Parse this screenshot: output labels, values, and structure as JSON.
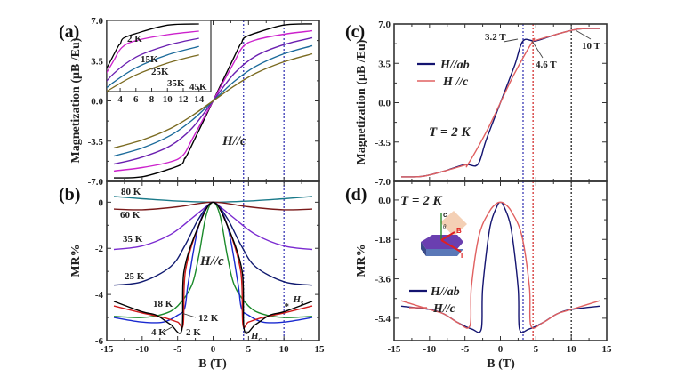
{
  "chart_data": [
    {
      "id": "a",
      "panel_label": "(a)",
      "type": "line",
      "title": "",
      "xlabel": "",
      "ylabel": "Magnetization (μB /Eu)",
      "xlim": [
        -15,
        15
      ],
      "ylim": [
        -7.0,
        7.0
      ],
      "yticks": [
        "7.0",
        "3.5",
        "0.0",
        "-3.5",
        "-7.0"
      ],
      "yticks_values": [
        7.0,
        3.5,
        0.0,
        -3.5,
        -7.0
      ],
      "annotation": "H//c",
      "vlines": [
        {
          "x": 4.3,
          "color": "#2a2ab0"
        },
        {
          "x": 10,
          "color": "#2a2ab0"
        }
      ],
      "series": [
        {
          "name": "2 K",
          "color": "#000000",
          "x": [
            -14,
            -10,
            -6,
            -4.4,
            -4.0,
            -3.5,
            0,
            3.5,
            4.0,
            4.4,
            6,
            10,
            14
          ],
          "y": [
            -6.7,
            -6.6,
            -5.9,
            -5.5,
            -5.0,
            -4.5,
            0,
            4.5,
            5.0,
            5.5,
            5.9,
            6.6,
            6.7
          ]
        },
        {
          "name": "15K",
          "color": "#cc22cc",
          "x": [
            -14,
            -10,
            -6,
            -4.2,
            -3,
            0,
            3,
            4.2,
            6,
            10,
            14
          ],
          "y": [
            -6.1,
            -5.8,
            -5.3,
            -4.7,
            -3.4,
            0,
            3.4,
            4.7,
            5.3,
            5.8,
            6.1
          ]
        },
        {
          "name": "25K",
          "color": "#6a1fb0",
          "x": [
            -14,
            -10,
            -6,
            -3,
            0,
            3,
            6,
            10,
            14
          ],
          "y": [
            -5.5,
            -4.9,
            -3.9,
            -2.4,
            0,
            2.4,
            3.9,
            4.9,
            5.5
          ]
        },
        {
          "name": "35K",
          "color": "#1a6a9a",
          "x": [
            -14,
            -10,
            -6,
            -3,
            0,
            3,
            6,
            10,
            14
          ],
          "y": [
            -4.8,
            -4.1,
            -3.0,
            -1.7,
            0,
            1.7,
            3.0,
            4.1,
            4.8
          ]
        },
        {
          "name": "45K",
          "color": "#7a6a20",
          "x": [
            -14,
            -10,
            -6,
            -3,
            0,
            3,
            6,
            10,
            14
          ],
          "y": [
            -4.1,
            -3.4,
            -2.4,
            -1.3,
            0,
            1.3,
            2.4,
            3.4,
            4.1
          ]
        }
      ],
      "inset": {
        "xticks": [
          "4",
          "6",
          "8",
          "10",
          "12",
          "14"
        ],
        "xticks_values": [
          4,
          6,
          8,
          10,
          12,
          14
        ],
        "xlim": [
          2.3,
          15.5
        ],
        "ylim": [
          1.0,
          7.0
        ],
        "labels": [
          "2 K",
          "15K",
          "25K",
          "35K",
          "45K"
        ]
      }
    },
    {
      "id": "b",
      "panel_label": "(b)",
      "type": "line",
      "xlabel": "B (T)",
      "ylabel": "MR%",
      "xlim": [
        -15,
        15
      ],
      "ylim": [
        -6,
        0.9
      ],
      "xticks": [
        "-15",
        "-10",
        "-5",
        "0",
        "5",
        "10",
        "15"
      ],
      "xticks_values": [
        -15,
        -10,
        -5,
        0,
        5,
        10,
        15
      ],
      "yticks": [
        "0",
        "-2",
        "-4",
        "-6"
      ],
      "yticks_values": [
        0,
        -2,
        -4,
        -6
      ],
      "annotation": "H//c",
      "markers": [
        {
          "label": "Hc",
          "x": 4.7
        },
        {
          "label": "Hs",
          "x": 10.3
        }
      ],
      "vlines": [
        {
          "x": 4.3,
          "color": "#2a2ab0"
        },
        {
          "x": 10,
          "color": "#2a2ab0"
        }
      ],
      "series": [
        {
          "name": "80 K",
          "color": "#1a7a8a",
          "x": [
            -14,
            -10,
            -5,
            0,
            5,
            10,
            14
          ],
          "y": [
            0.25,
            0.15,
            0.05,
            0,
            0.05,
            0.15,
            0.25
          ]
        },
        {
          "name": "60 K",
          "color": "#7a1a1a",
          "x": [
            -14,
            -10,
            -5,
            0,
            5,
            10,
            14
          ],
          "y": [
            -0.3,
            -0.33,
            -0.2,
            0,
            -0.2,
            -0.33,
            -0.3
          ]
        },
        {
          "name": "35 K",
          "color": "#7a2ad0",
          "x": [
            -14,
            -10,
            -6,
            -3,
            -1,
            0,
            1,
            3,
            6,
            10,
            14
          ],
          "y": [
            -2.05,
            -1.9,
            -1.4,
            -0.7,
            -0.2,
            0,
            -0.2,
            -0.7,
            -1.4,
            -1.9,
            -2.05
          ]
        },
        {
          "name": "25 K",
          "color": "#101a70",
          "x": [
            -14,
            -10,
            -6,
            -4,
            -2,
            0,
            2,
            4,
            6,
            10,
            14
          ],
          "y": [
            -3.6,
            -3.45,
            -2.8,
            -1.9,
            -0.7,
            0,
            -0.7,
            -1.9,
            -2.8,
            -3.45,
            -3.6
          ]
        },
        {
          "name": "18 K",
          "color": "#1a8a2a",
          "x": [
            -14,
            -10,
            -7,
            -5,
            -3,
            -2,
            -1,
            0,
            1,
            2,
            3,
            5,
            7,
            10,
            14
          ],
          "y": [
            -4.95,
            -5.0,
            -4.85,
            -4.5,
            -3.6,
            -2.3,
            -0.6,
            0,
            -0.6,
            -2.3,
            -3.6,
            -4.5,
            -4.85,
            -5.0,
            -4.95
          ]
        },
        {
          "name": "12 K",
          "color": "#1a2ad0",
          "x": [
            -14,
            -10,
            -7,
            -5,
            -4,
            -3.5,
            -2,
            0,
            2,
            3.5,
            4,
            5,
            7,
            10,
            14
          ],
          "y": [
            -5.0,
            -5.2,
            -5.2,
            -4.9,
            -4.6,
            -3.5,
            -1.0,
            0,
            -1.0,
            -3.5,
            -4.6,
            -4.9,
            -5.2,
            -5.2,
            -5.0
          ]
        },
        {
          "name": "4 K",
          "color": "#d01a1a",
          "x": [
            -14,
            -10,
            -7,
            -5,
            -4.2,
            -3.9,
            -2,
            0,
            2,
            3.9,
            4.2,
            5,
            7,
            10,
            14
          ],
          "y": [
            -4.5,
            -4.8,
            -5.0,
            -5.2,
            -5.3,
            -3.0,
            -1.0,
            0,
            -1.0,
            -3.0,
            -5.3,
            -5.2,
            -5.0,
            -4.8,
            -4.5
          ]
        },
        {
          "name": "2 K",
          "color": "#000000",
          "x": [
            -14,
            -10,
            -8,
            -6,
            -4.4,
            -4.1,
            -2,
            0,
            2,
            4.1,
            4.4,
            6,
            8,
            10,
            14
          ],
          "y": [
            -4.3,
            -4.75,
            -4.9,
            -5.3,
            -5.55,
            -3.0,
            -1.0,
            0,
            -1.0,
            -3.0,
            -5.55,
            -5.3,
            -4.9,
            -4.75,
            -4.3
          ]
        }
      ]
    },
    {
      "id": "c",
      "panel_label": "(c)",
      "type": "line",
      "xlabel": "",
      "ylabel": "Magnetization (μB /Eu)",
      "xlim": [
        -15,
        15
      ],
      "ylim": [
        -7.0,
        7.0
      ],
      "yticks": [
        "7.0",
        "3.5",
        "0.0",
        "-3.5",
        "-7.0"
      ],
      "yticks_values": [
        7.0,
        3.5,
        0.0,
        -3.5,
        -7.0
      ],
      "annotation": "T = 2 K",
      "arrows": [
        {
          "label": "3.2 T",
          "x": 3.2
        },
        {
          "label": "4.6 T",
          "x": 4.6
        },
        {
          "label": "10 T",
          "x": 10
        }
      ],
      "vlines": [
        {
          "x": 3.2,
          "color": "#2a2ab0"
        },
        {
          "x": 4.6,
          "color": "#d02020"
        },
        {
          "x": 10,
          "color": "#111111"
        }
      ],
      "series": [
        {
          "name": "H//ab",
          "color": "#141470",
          "x": [
            -14,
            -11,
            -8,
            -5,
            -3.2,
            -2,
            0,
            2,
            3.2,
            5,
            8,
            11,
            14
          ],
          "y": [
            -6.6,
            -6.55,
            -6.1,
            -5.5,
            -5.5,
            -3.3,
            0,
            3.3,
            5.5,
            5.5,
            6.1,
            6.55,
            6.6
          ]
        },
        {
          "name": "H //c",
          "color": "#e06060",
          "x": [
            -14,
            -11,
            -8,
            -5,
            -4.6,
            -2,
            0,
            2,
            4.6,
            5,
            8,
            11,
            14
          ],
          "y": [
            -6.6,
            -6.55,
            -6.1,
            -5.55,
            -5.5,
            -2.6,
            0,
            2.6,
            5.5,
            5.55,
            6.1,
            6.55,
            6.6
          ]
        }
      ]
    },
    {
      "id": "d",
      "panel_label": "(d)",
      "type": "line",
      "xlabel": "B (T)",
      "ylabel": "MR%",
      "xlim": [
        -15,
        15
      ],
      "ylim": [
        -6.42,
        0.85
      ],
      "xticks": [
        "-15",
        "-10",
        "-5",
        "0",
        "5",
        "10",
        "15"
      ],
      "xticks_values": [
        -15,
        -10,
        -5,
        0,
        5,
        10,
        15
      ],
      "yticks": [
        "0.0",
        "-1.8",
        "-3.6",
        "-5.4"
      ],
      "yticks_values": [
        0.0,
        -1.8,
        -3.6,
        -5.4
      ],
      "annotation": "T = 2 K",
      "inset_labels": {
        "c_axis": "c",
        "theta": "θ",
        "field": "B",
        "current": "I"
      },
      "vlines": [
        {
          "x": 3.2,
          "color": "#2a2ab0"
        },
        {
          "x": 4.6,
          "color": "#d02020"
        },
        {
          "x": 10,
          "color": "#111111"
        }
      ],
      "series": [
        {
          "name": "H//ab",
          "color": "#141470",
          "x": [
            -14,
            -10,
            -8,
            -6,
            -4,
            -2.7,
            -2.5,
            -1.5,
            -0.5,
            0,
            0.5,
            1.5,
            2.5,
            2.7,
            4,
            6,
            8,
            10,
            14
          ],
          "y": [
            -4.85,
            -5.0,
            -5.2,
            -5.6,
            -5.9,
            -5.9,
            -4.0,
            -1.3,
            -0.3,
            -0.1,
            -0.3,
            -1.3,
            -4.0,
            -5.9,
            -5.9,
            -5.6,
            -5.2,
            -5.0,
            -4.85
          ]
        },
        {
          "name": "H//c",
          "color": "#e06060",
          "x": [
            -14,
            -10,
            -8,
            -6,
            -4.3,
            -4.1,
            -3,
            -1.5,
            -0.5,
            0,
            0.5,
            1.5,
            3,
            4.1,
            4.3,
            6,
            8,
            10,
            14
          ],
          "y": [
            -4.6,
            -5.0,
            -5.2,
            -5.6,
            -5.75,
            -4.0,
            -1.6,
            -0.5,
            -0.15,
            -0.1,
            -0.15,
            -0.5,
            -1.6,
            -4.0,
            -5.75,
            -5.6,
            -5.2,
            -5.0,
            -4.6
          ]
        }
      ]
    }
  ]
}
